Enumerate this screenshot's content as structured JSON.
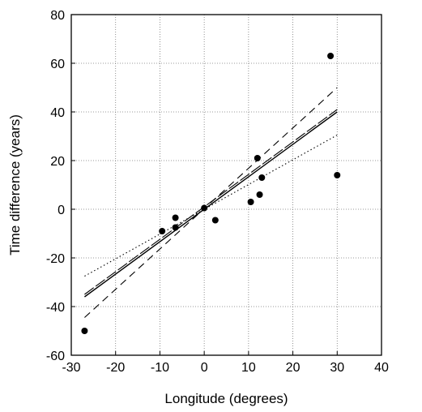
{
  "chart_data": {
    "type": "scatter",
    "xlabel": "Longitude (degrees)",
    "ylabel": "Time difference (years)",
    "xlim": [
      -30,
      40
    ],
    "ylim": [
      -60,
      80
    ],
    "xticks": [
      -30,
      -20,
      -10,
      0,
      10,
      20,
      30,
      40
    ],
    "yticks": [
      -60,
      -40,
      -20,
      0,
      20,
      40,
      60,
      80
    ],
    "grid": true,
    "points": [
      {
        "x": -27,
        "y": -50
      },
      {
        "x": -9.5,
        "y": -9
      },
      {
        "x": -6.5,
        "y": -3.5
      },
      {
        "x": -6.5,
        "y": -7.5
      },
      {
        "x": 0,
        "y": 0.5
      },
      {
        "x": 2.5,
        "y": -4.5
      },
      {
        "x": 10.5,
        "y": 3
      },
      {
        "x": 12,
        "y": 21
      },
      {
        "x": 12.5,
        "y": 6
      },
      {
        "x": 13,
        "y": 13
      },
      {
        "x": 28.5,
        "y": 63
      },
      {
        "x": 30,
        "y": 14
      }
    ],
    "lines": [
      {
        "style": "solid",
        "x": [
          -27,
          30
        ],
        "y": [
          -36,
          40
        ]
      },
      {
        "style": "long-dash",
        "x": [
          -27,
          30
        ],
        "y": [
          -35,
          41
        ]
      },
      {
        "style": "dash",
        "x": [
          -27,
          30
        ],
        "y": [
          -44.5,
          50
        ]
      },
      {
        "style": "dotted",
        "x": [
          -27,
          30
        ],
        "y": [
          -27.5,
          30.5
        ]
      }
    ]
  }
}
